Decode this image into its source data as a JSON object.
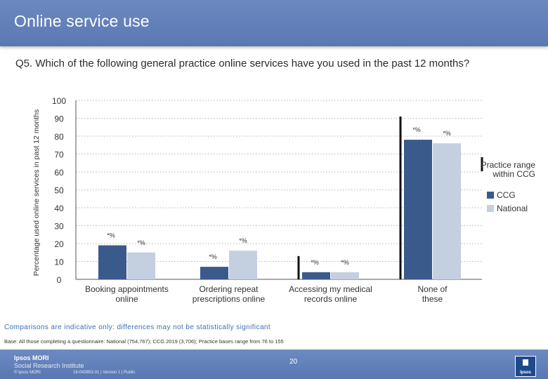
{
  "header": {
    "title": "Online service use"
  },
  "question": "Q5. Which of the following general practice online services have you used in the past 12 months?",
  "chart_data": {
    "type": "bar",
    "ylabel": "Percentage used online services in past 12 months",
    "ylim": [
      0,
      100
    ],
    "yticks": [
      0,
      10,
      20,
      30,
      40,
      50,
      60,
      70,
      80,
      90,
      100
    ],
    "grid": true,
    "legend_position": "right",
    "categories": [
      "Booking appointments online",
      "Ordering repeat prescriptions online",
      "Accessing my medical records online",
      "None of these"
    ],
    "series": [
      {
        "name": "CCG",
        "color": "#3a5a8c",
        "values": [
          19,
          7,
          4,
          78
        ],
        "labels": [
          "*%",
          "*%",
          "*%",
          "*%"
        ]
      },
      {
        "name": "National",
        "color": "#c4cfe0",
        "values": [
          15,
          16,
          4,
          76
        ],
        "labels": [
          "*%",
          "*%",
          "*%",
          "*%"
        ]
      }
    ],
    "range": {
      "name": "Practice range within CCG",
      "intervals": [
        [
          null,
          null
        ],
        [
          null,
          null
        ],
        [
          0,
          13
        ],
        [
          0,
          91
        ]
      ]
    }
  },
  "note": "Comparisons are indicative only: differences may not be statistically significant",
  "base": "Base: All those completing a questionnaire: National (754,767); CCG 2019 (3,706); Practice bases range from 76 to 155",
  "footer": {
    "brand_line1": "Ipsos MORI",
    "brand_line2": "Social Research Institute",
    "copyright": "© Ipsos MORI",
    "job_ref": "18-042653-01 | Version 1 | Public",
    "page_number": "20",
    "logo_text": "Ipsos"
  },
  "colors": {
    "title_bar": "#5f7db6",
    "ccg": "#3a5a8c",
    "national": "#c4cfe0",
    "note": "#3b6fb5"
  }
}
